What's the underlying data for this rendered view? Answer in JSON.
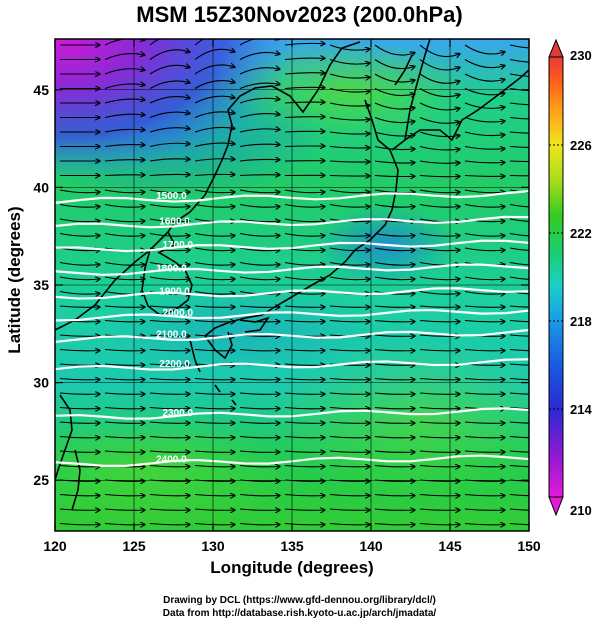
{
  "title": "MSM 15Z30Nov2023 (200.0hPa)",
  "chart_data": {
    "type": "heatmap",
    "title": "MSM 15Z30Nov2023 (200.0hPa)",
    "xlabel": "Longitude (degrees)",
    "ylabel": "Latitude  (degrees)",
    "xlim": [
      120,
      150
    ],
    "ylim": [
      22.4,
      47.6
    ],
    "x_ticks": [
      120,
      125,
      130,
      135,
      140,
      145,
      150
    ],
    "y_ticks": [
      25,
      30,
      35,
      40,
      45
    ],
    "colorbar": {
      "range": [
        210,
        230
      ],
      "ticks": [
        210,
        214,
        218,
        222,
        226,
        230
      ],
      "colors": [
        "#e61ad9",
        "#8a1ad2",
        "#2a2ad6",
        "#1a66e0",
        "#1aa6e8",
        "#1ad2c0",
        "#1acf6a",
        "#33cc22",
        "#aadd1a",
        "#f0e61a",
        "#ffa01a",
        "#ff5a1a",
        "#e63a3a"
      ]
    },
    "contours": [
      {
        "label": "1500.0",
        "lat": 39.3
      },
      {
        "label": "1600.0",
        "lat": 38.0
      },
      {
        "label": "1700.0",
        "lat": 36.8
      },
      {
        "label": "1800.0",
        "lat": 35.6
      },
      {
        "label": "1900.0",
        "lat": 34.4
      },
      {
        "label": "2000.0",
        "lat": 33.3
      },
      {
        "label": "2100.0",
        "lat": 32.2
      },
      {
        "label": "2200.0",
        "lat": 30.7
      },
      {
        "label": "2300.0",
        "lat": 28.2
      },
      {
        "label": "2400.0",
        "lat": 25.8
      }
    ]
  },
  "credits": {
    "line1": "Drawing by DCL (https://www.gfd-dennou.org/library/dcl/)",
    "line2": "Data from http://database.rish.kyoto-u.ac.jp/arch/jmadata/"
  }
}
